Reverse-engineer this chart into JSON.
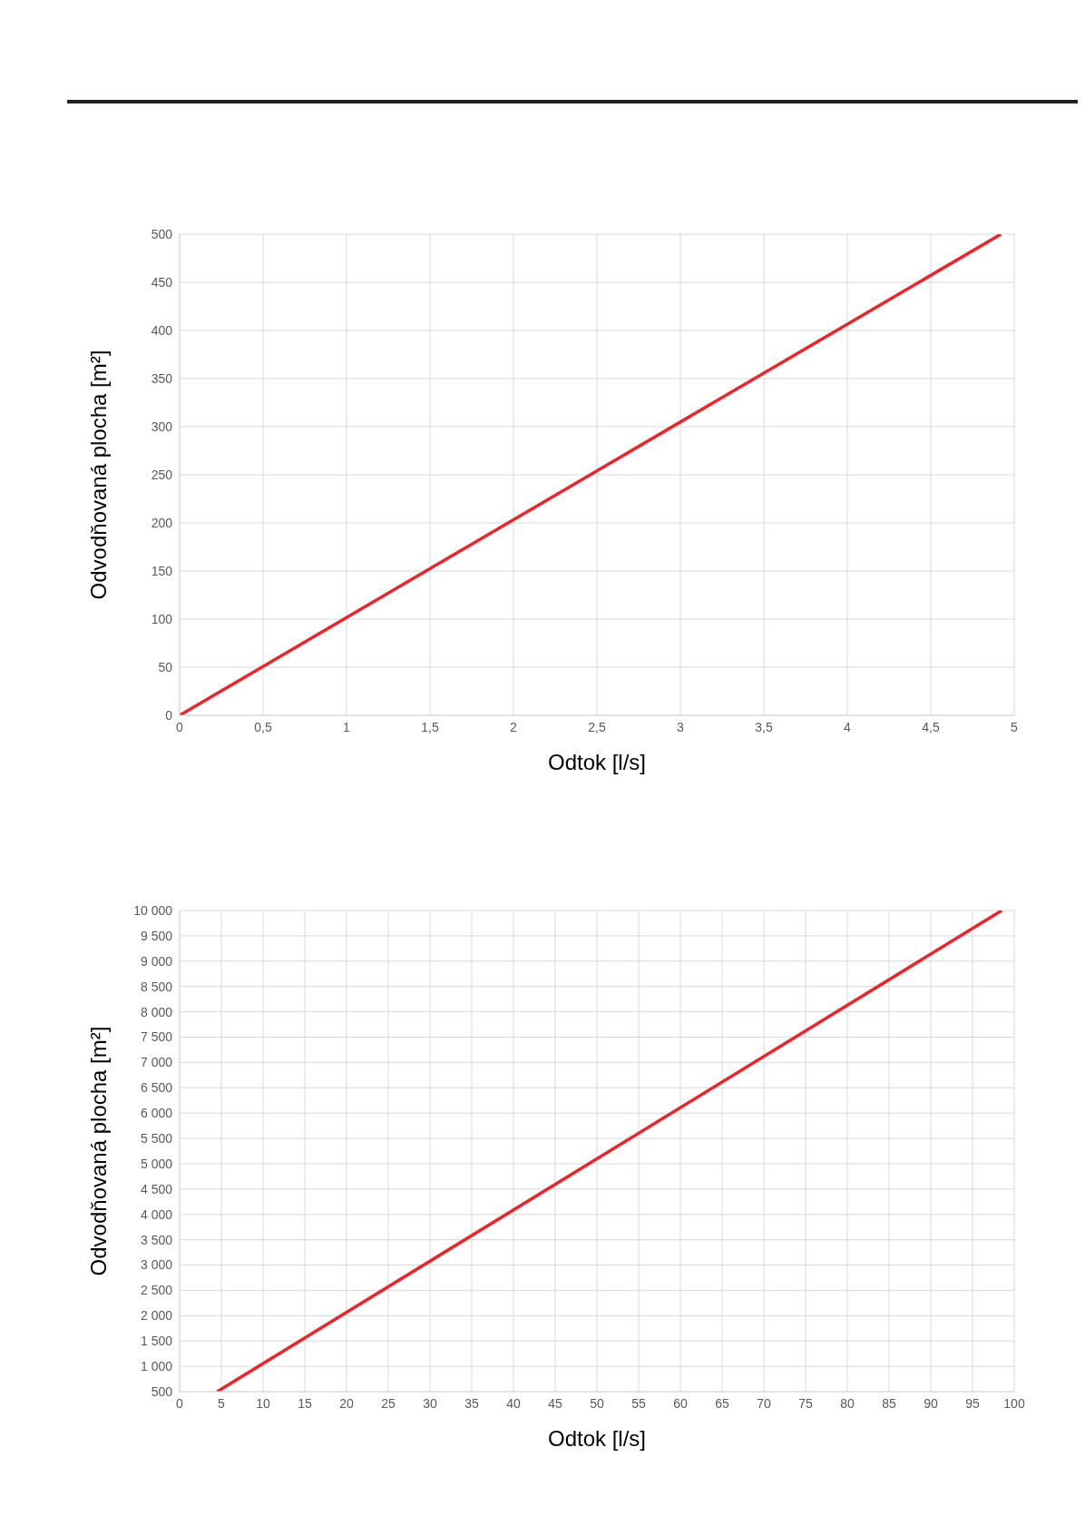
{
  "chart_data": [
    {
      "type": "line",
      "xlabel": "Odtok [l/s]",
      "ylabel": "Odvodňovaná plocha [m²]",
      "x": [
        0,
        4.92
      ],
      "series": [
        {
          "color": "#e8262b",
          "values": [
            0,
            500
          ]
        }
      ],
      "xlim": [
        0,
        5
      ],
      "xticks": [
        0,
        {
          "value": 0.5,
          "label": "0,5"
        },
        1,
        {
          "value": 1.5,
          "label": "1,5"
        },
        2,
        {
          "value": 2.5,
          "label": "2,5"
        },
        3,
        {
          "value": 3.5,
          "label": "3,5"
        },
        4,
        {
          "value": 4.5,
          "label": "4,5"
        },
        5
      ],
      "ylim": [
        0,
        500
      ],
      "yticks": [
        0,
        50,
        100,
        150,
        200,
        250,
        300,
        350,
        400,
        450,
        500
      ],
      "grid": true,
      "marker": "none",
      "line_style": "solid",
      "legend": false
    },
    {
      "type": "line",
      "xlabel": "Odtok [l/s]",
      "ylabel": "Odvodňovaná plocha [m²]",
      "x": [
        4.5,
        98.5
      ],
      "series": [
        {
          "color": "#e8262b",
          "values": [
            500,
            10000
          ]
        }
      ],
      "xlim": [
        0,
        100
      ],
      "xticks": [
        0,
        5,
        10,
        15,
        20,
        25,
        30,
        35,
        40,
        45,
        50,
        55,
        60,
        65,
        70,
        75,
        80,
        85,
        90,
        95,
        100
      ],
      "ylim": [
        500,
        10000
      ],
      "yticks": [
        500,
        {
          "value": 1000,
          "label": "1 000"
        },
        {
          "value": 1500,
          "label": "1 500"
        },
        {
          "value": 2000,
          "label": "2 000"
        },
        {
          "value": 2500,
          "label": "2 500"
        },
        {
          "value": 3000,
          "label": "3 000"
        },
        {
          "value": 3500,
          "label": "3 500"
        },
        {
          "value": 4000,
          "label": "4 000"
        },
        {
          "value": 4500,
          "label": "4 500"
        },
        {
          "value": 5000,
          "label": "5 000"
        },
        {
          "value": 5500,
          "label": "5 500"
        },
        {
          "value": 6000,
          "label": "6 000"
        },
        {
          "value": 6500,
          "label": "6 500"
        },
        {
          "value": 7000,
          "label": "7 000"
        },
        {
          "value": 7500,
          "label": "7 500"
        },
        {
          "value": 8000,
          "label": "8 000"
        },
        {
          "value": 8500,
          "label": "8 500"
        },
        {
          "value": 9000,
          "label": "9 000"
        },
        {
          "value": 9500,
          "label": "9 500"
        },
        {
          "value": 10000,
          "label": "10 000"
        }
      ],
      "grid": true,
      "marker": "none",
      "line_style": "solid",
      "legend": false
    }
  ]
}
